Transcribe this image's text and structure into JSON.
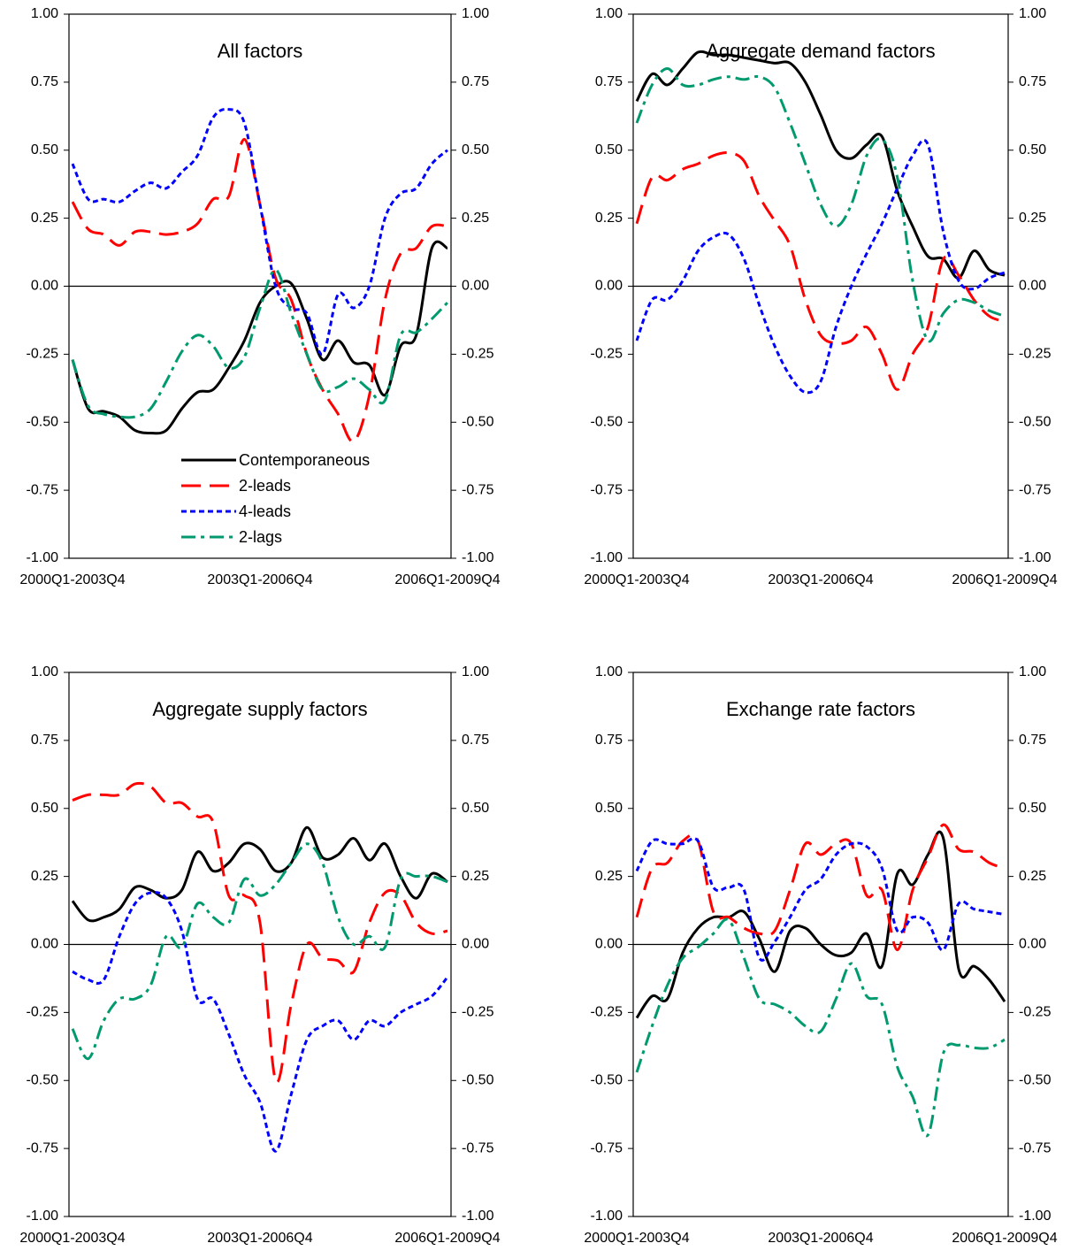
{
  "chart_data": [
    {
      "type": "line",
      "title": "All factors",
      "legend": "lower-center",
      "categories": [
        "2000Q1-2003Q4",
        null,
        null,
        null,
        null,
        null,
        null,
        null,
        null,
        null,
        null,
        null,
        "2003Q1-2006Q4",
        null,
        null,
        null,
        null,
        null,
        null,
        null,
        null,
        null,
        null,
        null,
        "2006Q1-2009Q4"
      ],
      "ylim": [
        -1,
        1
      ],
      "y2lim": [
        -1,
        1
      ],
      "yticks": [
        {
          "value": -1,
          "label": "-1.00"
        },
        {
          "value": -0.75,
          "label": "-0.75"
        },
        {
          "value": -0.5,
          "label": "-0.50"
        },
        {
          "value": -0.25,
          "label": "-0.25"
        },
        {
          "value": 0,
          "label": "0.00"
        },
        {
          "value": 0.25,
          "label": "0.25"
        },
        {
          "value": 0.5,
          "label": "0.50"
        },
        {
          "value": 0.75,
          "label": "0.75"
        },
        {
          "value": 1,
          "label": "1.00"
        }
      ],
      "y2ticks": [
        {
          "value": -1,
          "label": "-1.00"
        },
        {
          "value": -0.75,
          "label": "-0.75"
        },
        {
          "value": -0.5,
          "label": "-0.50"
        },
        {
          "value": -0.25,
          "label": "-0.25"
        },
        {
          "value": 0,
          "label": "0.00"
        },
        {
          "value": 0.25,
          "label": "0.25"
        },
        {
          "value": 0.5,
          "label": "0.50"
        },
        {
          "value": 0.75,
          "label": "0.75"
        },
        {
          "value": 1,
          "label": "1.00"
        }
      ],
      "series": [
        {
          "name": "Contemporaneous",
          "color": "#000000",
          "style": "solid",
          "values": [
            -0.27,
            -0.45,
            -0.46,
            -0.48,
            -0.53,
            -0.54,
            -0.53,
            -0.45,
            -0.39,
            -0.38,
            -0.3,
            -0.2,
            -0.06,
            0,
            0.01,
            -0.12,
            -0.27,
            -0.2,
            -0.28,
            -0.29,
            -0.4,
            -0.22,
            -0.18,
            0.14,
            0.14
          ]
        },
        {
          "name": "2-leads",
          "color": "#ff0000",
          "style": "dashed",
          "values": [
            0.31,
            0.21,
            0.19,
            0.15,
            0.2,
            0.2,
            0.19,
            0.2,
            0.23,
            0.32,
            0.33,
            0.54,
            0.3,
            0.03,
            -0.05,
            -0.25,
            -0.38,
            -0.47,
            -0.57,
            -0.4,
            -0.05,
            0.12,
            0.14,
            0.22,
            0.22
          ]
        },
        {
          "name": "4-leads",
          "color": "#0000ff",
          "style": "dotted",
          "values": [
            0.45,
            0.32,
            0.32,
            0.31,
            0.35,
            0.38,
            0.36,
            0.42,
            0.48,
            0.62,
            0.65,
            0.6,
            0.3,
            0.0,
            -0.08,
            -0.1,
            -0.25,
            -0.03,
            -0.08,
            0.0,
            0.25,
            0.34,
            0.36,
            0.45,
            0.5
          ]
        },
        {
          "name": "2-lags",
          "color": "#009a6e",
          "style": "dashdot",
          "values": [
            -0.27,
            -0.44,
            -0.47,
            -0.48,
            -0.48,
            -0.45,
            -0.35,
            -0.24,
            -0.18,
            -0.22,
            -0.3,
            -0.26,
            -0.08,
            0.06,
            -0.1,
            -0.25,
            -0.38,
            -0.37,
            -0.34,
            -0.38,
            -0.42,
            -0.18,
            -0.17,
            -0.12,
            -0.06
          ]
        }
      ]
    },
    {
      "type": "line",
      "title": "Aggregate demand factors",
      "categories": [
        "2000Q1-2003Q4",
        null,
        null,
        null,
        null,
        null,
        null,
        null,
        null,
        null,
        null,
        null,
        "2003Q1-2006Q4",
        null,
        null,
        null,
        null,
        null,
        null,
        null,
        null,
        null,
        null,
        null,
        "2006Q1-2009Q4"
      ],
      "ylim": [
        -1,
        1
      ],
      "y2lim": [
        -1,
        1
      ],
      "yticks": [
        {
          "value": -1,
          "label": "-1.00"
        },
        {
          "value": -0.75,
          "label": "-0.75"
        },
        {
          "value": -0.5,
          "label": "-0.50"
        },
        {
          "value": -0.25,
          "label": "-0.25"
        },
        {
          "value": 0,
          "label": "0.00"
        },
        {
          "value": 0.25,
          "label": "0.25"
        },
        {
          "value": 0.5,
          "label": "0.50"
        },
        {
          "value": 0.75,
          "label": "0.75"
        },
        {
          "value": 1,
          "label": "1.00"
        }
      ],
      "y2ticks": [
        {
          "value": -1,
          "label": "-1.00"
        },
        {
          "value": -0.75,
          "label": "-0.75"
        },
        {
          "value": -0.5,
          "label": "-0.50"
        },
        {
          "value": -0.25,
          "label": "-0.25"
        },
        {
          "value": 0,
          "label": "0.00"
        },
        {
          "value": 0.25,
          "label": "0.25"
        },
        {
          "value": 0.5,
          "label": "0.50"
        },
        {
          "value": 0.75,
          "label": "0.75"
        },
        {
          "value": 1,
          "label": "1.00"
        }
      ],
      "series": [
        {
          "color": "#000000",
          "style": "solid",
          "values": [
            0.68,
            0.78,
            0.74,
            0.8,
            0.86,
            0.85,
            0.85,
            0.84,
            0.83,
            0.82,
            0.82,
            0.75,
            0.63,
            0.5,
            0.47,
            0.52,
            0.55,
            0.35,
            0.22,
            0.11,
            0.1,
            0.03,
            0.13,
            0.06,
            0.04
          ]
        },
        {
          "color": "#ff0000",
          "style": "dashed",
          "values": [
            0.23,
            0.4,
            0.39,
            0.43,
            0.45,
            0.48,
            0.49,
            0.46,
            0.33,
            0.24,
            0.15,
            -0.05,
            -0.18,
            -0.21,
            -0.2,
            -0.15,
            -0.25,
            -0.38,
            -0.25,
            -0.15,
            0.1,
            0.04,
            -0.05,
            -0.11,
            -0.13
          ]
        },
        {
          "color": "#0000ff",
          "style": "dotted",
          "values": [
            -0.2,
            -0.05,
            -0.05,
            0.02,
            0.13,
            0.18,
            0.19,
            0.1,
            -0.07,
            -0.22,
            -0.33,
            -0.39,
            -0.35,
            -0.15,
            0.0,
            0.12,
            0.23,
            0.36,
            0.48,
            0.52,
            0.2,
            0.02,
            -0.01,
            0.03,
            0.05
          ]
        },
        {
          "color": "#009a6e",
          "style": "dashdot",
          "values": [
            0.6,
            0.74,
            0.8,
            0.74,
            0.74,
            0.76,
            0.77,
            0.76,
            0.77,
            0.73,
            0.6,
            0.45,
            0.3,
            0.22,
            0.3,
            0.48,
            0.54,
            0.4,
            0.02,
            -0.2,
            -0.1,
            -0.05,
            -0.06,
            -0.09,
            -0.11
          ]
        }
      ]
    },
    {
      "type": "line",
      "title": "Aggregate supply factors",
      "categories": [
        "2000Q1-2003Q4",
        null,
        null,
        null,
        null,
        null,
        null,
        null,
        null,
        null,
        null,
        null,
        "2003Q1-2006Q4",
        null,
        null,
        null,
        null,
        null,
        null,
        null,
        null,
        null,
        null,
        null,
        "2006Q1-2009Q4"
      ],
      "ylim": [
        -1,
        1
      ],
      "y2lim": [
        -1,
        1
      ],
      "yticks": [
        {
          "value": -1,
          "label": "-1.00"
        },
        {
          "value": -0.75,
          "label": "-0.75"
        },
        {
          "value": -0.5,
          "label": "-0.50"
        },
        {
          "value": -0.25,
          "label": "-0.25"
        },
        {
          "value": 0,
          "label": "0.00"
        },
        {
          "value": 0.25,
          "label": "0.25"
        },
        {
          "value": 0.5,
          "label": "0.50"
        },
        {
          "value": 0.75,
          "label": "0.75"
        },
        {
          "value": 1,
          "label": "1.00"
        }
      ],
      "y2ticks": [
        {
          "value": -1,
          "label": "-1.00"
        },
        {
          "value": -0.75,
          "label": "-0.75"
        },
        {
          "value": -0.5,
          "label": "-0.50"
        },
        {
          "value": -0.25,
          "label": "-0.25"
        },
        {
          "value": 0,
          "label": "0.00"
        },
        {
          "value": 0.25,
          "label": "0.25"
        },
        {
          "value": 0.5,
          "label": "0.50"
        },
        {
          "value": 0.75,
          "label": "0.75"
        },
        {
          "value": 1,
          "label": "1.00"
        }
      ],
      "series": [
        {
          "color": "#000000",
          "style": "solid",
          "values": [
            0.16,
            0.09,
            0.1,
            0.13,
            0.21,
            0.2,
            0.17,
            0.2,
            0.34,
            0.27,
            0.3,
            0.37,
            0.35,
            0.27,
            0.3,
            0.43,
            0.32,
            0.33,
            0.39,
            0.31,
            0.37,
            0.25,
            0.17,
            0.26,
            0.23
          ]
        },
        {
          "color": "#ff0000",
          "style": "dashed",
          "values": [
            0.53,
            0.55,
            0.55,
            0.55,
            0.59,
            0.58,
            0.52,
            0.52,
            0.47,
            0.45,
            0.18,
            0.18,
            0.08,
            -0.5,
            -0.22,
            0.0,
            -0.05,
            -0.06,
            -0.1,
            0.08,
            0.19,
            0.18,
            0.08,
            0.04,
            0.05
          ]
        },
        {
          "color": "#0000ff",
          "style": "dotted",
          "values": [
            -0.1,
            -0.13,
            -0.13,
            0.03,
            0.15,
            0.19,
            0.17,
            0.05,
            -0.2,
            -0.2,
            -0.33,
            -0.48,
            -0.58,
            -0.76,
            -0.55,
            -0.35,
            -0.3,
            -0.28,
            -0.35,
            -0.28,
            -0.3,
            -0.25,
            -0.22,
            -0.19,
            -0.12
          ]
        },
        {
          "color": "#009a6e",
          "style": "dashdot",
          "values": [
            -0.31,
            -0.42,
            -0.28,
            -0.2,
            -0.2,
            -0.15,
            0.03,
            -0.01,
            0.15,
            0.1,
            0.08,
            0.24,
            0.18,
            0.22,
            0.3,
            0.37,
            0.3,
            0.1,
            0.0,
            0.03,
            -0.01,
            0.24,
            0.25,
            0.25,
            0.23
          ]
        }
      ]
    },
    {
      "type": "line",
      "title": "Exchange rate factors",
      "categories": [
        "2000Q1-2003Q4",
        null,
        null,
        null,
        null,
        null,
        null,
        null,
        null,
        null,
        null,
        null,
        "2003Q1-2006Q4",
        null,
        null,
        null,
        null,
        null,
        null,
        null,
        null,
        null,
        null,
        null,
        "2006Q1-2009Q4"
      ],
      "ylim": [
        -1,
        1
      ],
      "y2lim": [
        -1,
        1
      ],
      "yticks": [
        {
          "value": -1,
          "label": "-1.00"
        },
        {
          "value": -0.75,
          "label": "-0.75"
        },
        {
          "value": -0.5,
          "label": "-0.50"
        },
        {
          "value": -0.25,
          "label": "-0.25"
        },
        {
          "value": 0,
          "label": "0.00"
        },
        {
          "value": 0.25,
          "label": "0.25"
        },
        {
          "value": 0.5,
          "label": "0.50"
        },
        {
          "value": 0.75,
          "label": "0.75"
        },
        {
          "value": 1,
          "label": "1.00"
        }
      ],
      "y2ticks": [
        {
          "value": -1,
          "label": "-1.00"
        },
        {
          "value": -0.75,
          "label": "-0.75"
        },
        {
          "value": -0.5,
          "label": "-0.50"
        },
        {
          "value": -0.25,
          "label": "-0.25"
        },
        {
          "value": 0,
          "label": "0.00"
        },
        {
          "value": 0.25,
          "label": "0.25"
        },
        {
          "value": 0.5,
          "label": "0.50"
        },
        {
          "value": 0.75,
          "label": "0.75"
        },
        {
          "value": 1,
          "label": "1.00"
        }
      ],
      "series": [
        {
          "color": "#000000",
          "style": "solid",
          "values": [
            -0.27,
            -0.19,
            -0.2,
            -0.03,
            0.06,
            0.1,
            0.1,
            0.12,
            0.02,
            -0.1,
            0.05,
            0.06,
            0.0,
            -0.04,
            -0.03,
            0.04,
            -0.08,
            0.26,
            0.22,
            0.33,
            0.39,
            -0.09,
            -0.08,
            -0.13,
            -0.21
          ]
        },
        {
          "color": "#ff0000",
          "style": "dashed",
          "values": [
            0.1,
            0.28,
            0.3,
            0.38,
            0.38,
            0.12,
            0.1,
            0.06,
            0.04,
            0.05,
            0.2,
            0.37,
            0.33,
            0.37,
            0.37,
            0.18,
            0.2,
            -0.02,
            0.2,
            0.32,
            0.44,
            0.35,
            0.34,
            0.3,
            0.28
          ]
        },
        {
          "color": "#0000ff",
          "style": "dotted",
          "values": [
            0.27,
            0.38,
            0.37,
            0.37,
            0.38,
            0.21,
            0.21,
            0.2,
            -0.05,
            0.01,
            0.1,
            0.2,
            0.24,
            0.33,
            0.37,
            0.36,
            0.28,
            0.05,
            0.1,
            0.08,
            -0.02,
            0.15,
            0.13,
            0.12,
            0.11
          ]
        },
        {
          "color": "#009a6e",
          "style": "dashdot",
          "values": [
            -0.47,
            -0.3,
            -0.15,
            -0.05,
            -0.01,
            0.04,
            0.09,
            -0.05,
            -0.2,
            -0.22,
            -0.25,
            -0.3,
            -0.32,
            -0.2,
            -0.07,
            -0.19,
            -0.22,
            -0.45,
            -0.56,
            -0.7,
            -0.4,
            -0.37,
            -0.38,
            -0.38,
            -0.35
          ]
        }
      ]
    }
  ]
}
